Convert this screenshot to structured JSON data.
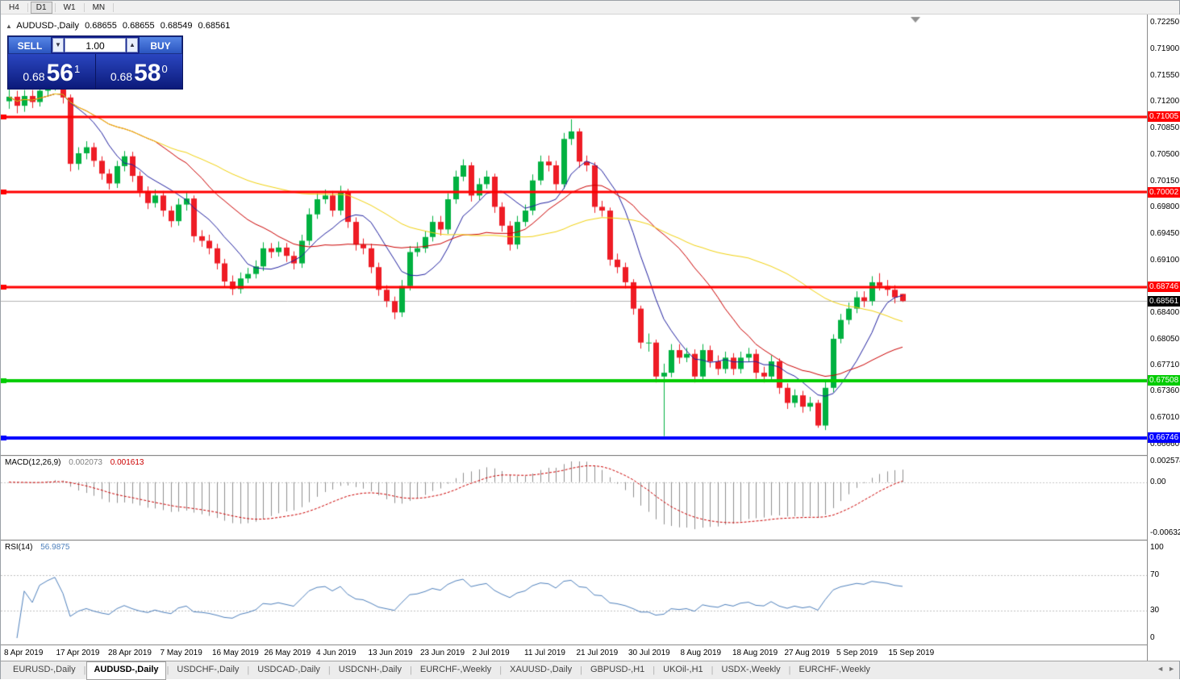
{
  "timeframe_toolbar": {
    "buttons": [
      "H4",
      "D1",
      "W1",
      "MN"
    ],
    "active": "D1"
  },
  "icons": {
    "collapse": "▲",
    "volume_down": "▼",
    "volume_up": "▲",
    "tab_separator": "|",
    "tab_scroll_left": "◄",
    "tab_scroll_right": "►"
  },
  "chart_header": {
    "title": "AUDUSD-,Daily",
    "open": "0.68655",
    "high": "0.68655",
    "low": "0.68549",
    "close": "0.68561"
  },
  "trade_panel": {
    "sell_label": "SELL",
    "buy_label": "BUY",
    "volume": "1.00",
    "bid": {
      "prefix": "0.68",
      "big": "56",
      "sup": "1"
    },
    "ask": {
      "prefix": "0.68",
      "big": "58",
      "sup": "0"
    }
  },
  "price_axis": {
    "labels": [
      "0.72250",
      "0.71900",
      "0.71550",
      "0.71200",
      "0.70850",
      "0.70500",
      "0.70150",
      "0.69800",
      "0.69450",
      "0.69100",
      "0.68400",
      "0.68050",
      "0.67710",
      "0.67360",
      "0.67010",
      "0.66660"
    ]
  },
  "current_price": {
    "label": "0.68561",
    "price": 0.68561,
    "tag_bg": "#000000",
    "line_color": "#b4b4b4"
  },
  "levels": [
    {
      "label": "0.71005",
      "price": 0.71005,
      "color": "#ff0000",
      "width": 3
    },
    {
      "label": "0.70002",
      "price": 0.70002,
      "color": "#ff0000",
      "width": 3
    },
    {
      "label": "0.68746",
      "price": 0.68746,
      "color": "#ff0000",
      "width": 3
    },
    {
      "label": "0.67508",
      "price": 0.67508,
      "color": "#00cc00",
      "width": 4
    },
    {
      "label": "0.66746",
      "price": 0.66746,
      "color": "#0000ff",
      "width": 4
    }
  ],
  "macd_panel": {
    "title": "MACD(12,26,9)",
    "value_main": "0.002073",
    "value_signal": "0.001613",
    "histogram_color": "#909090",
    "signal_color": "#cc0000",
    "axis_labels": [
      {
        "text": "0.0025740",
        "value": 0.002574
      },
      {
        "text": "0.00",
        "value": 0
      },
      {
        "text": "-0.0063260",
        "value": -0.006326
      }
    ]
  },
  "rsi_panel": {
    "title": "RSI(14)",
    "value": "56.9875",
    "period": 14,
    "line_color": "#4f81bd",
    "levels": [
      70,
      30
    ],
    "axis_labels": [
      100,
      70,
      30,
      0
    ]
  },
  "date_axis": {
    "labels": [
      "8 Apr 2019",
      "17 Apr 2019",
      "28 Apr 2019",
      "7 May 2019",
      "16 May 2019",
      "26 May 2019",
      "4 Jun 2019",
      "13 Jun 2019",
      "23 Jun 2019",
      "2 Jul 2019",
      "11 Jul 2019",
      "21 Jul 2019",
      "30 Jul 2019",
      "8 Aug 2019",
      "18 Aug 2019",
      "27 Aug 2019",
      "5 Sep 2019",
      "15 Sep 2019"
    ]
  },
  "tabs": {
    "items": [
      "EURUSD-,Daily",
      "AUDUSD-,Daily",
      "USDCHF-,Daily",
      "USDCAD-,Daily",
      "USDCNH-,Daily",
      "EURCHF-,Weekly",
      "XAUUSD-,Daily",
      "GBPUSD-,H1",
      "UKOil-,H1",
      "USDX-,Weekly",
      "EURCHF-,Weekly"
    ],
    "active_index": 1
  },
  "chart_data": {
    "type": "candlestick",
    "symbol": "AUDUSD",
    "timeframe": "Daily",
    "title": "AUDUSD-,Daily",
    "visible_range": {
      "start": "8 Apr 2019",
      "end": "18 Sep 2019"
    },
    "y_range": [
      0.6652,
      0.7236
    ],
    "up_color": "#00b140",
    "down_color": "#ee1c25",
    "overlays": [
      {
        "name": "ma-fast",
        "type": "sma",
        "period": 8,
        "color": "#2020a0"
      },
      {
        "name": "ma-mid",
        "type": "sma",
        "period": 20,
        "color": "#cc0000"
      },
      {
        "name": "ma-slow",
        "type": "sma",
        "period": 45,
        "color": "#f2d20e"
      }
    ],
    "candles": [
      [
        0.7121,
        0.7137,
        0.7111,
        0.7127
      ],
      [
        0.7127,
        0.7135,
        0.7105,
        0.7115
      ],
      [
        0.7115,
        0.7136,
        0.7107,
        0.7128
      ],
      [
        0.7128,
        0.7136,
        0.7112,
        0.712
      ],
      [
        0.712,
        0.7143,
        0.7114,
        0.7135
      ],
      [
        0.7135,
        0.7149,
        0.7128,
        0.7142
      ],
      [
        0.7142,
        0.7151,
        0.7135,
        0.7148
      ],
      [
        0.7148,
        0.7152,
        0.7118,
        0.7126
      ],
      [
        0.7126,
        0.713,
        0.7028,
        0.7038
      ],
      [
        0.7038,
        0.706,
        0.703,
        0.7052
      ],
      [
        0.7052,
        0.7068,
        0.7044,
        0.706
      ],
      [
        0.706,
        0.7066,
        0.7034,
        0.7042
      ],
      [
        0.7042,
        0.7048,
        0.7017,
        0.7025
      ],
      [
        0.7025,
        0.7031,
        0.7004,
        0.7012
      ],
      [
        0.7012,
        0.7042,
        0.7006,
        0.7035
      ],
      [
        0.7035,
        0.7055,
        0.7028,
        0.7048
      ],
      [
        0.7048,
        0.7054,
        0.7014,
        0.7022
      ],
      [
        0.7022,
        0.7028,
        0.6994,
        0.7002
      ],
      [
        0.7002,
        0.7008,
        0.6978,
        0.6986
      ],
      [
        0.6986,
        0.7004,
        0.698,
        0.6996
      ],
      [
        0.6996,
        0.7002,
        0.6968,
        0.6976
      ],
      [
        0.6976,
        0.6982,
        0.6954,
        0.6962
      ],
      [
        0.6962,
        0.6992,
        0.6956,
        0.6984
      ],
      [
        0.6984,
        0.7,
        0.6976,
        0.6992
      ],
      [
        0.6992,
        0.6996,
        0.6934,
        0.6942
      ],
      [
        0.6942,
        0.695,
        0.6928,
        0.6936
      ],
      [
        0.6936,
        0.6944,
        0.6918,
        0.6926
      ],
      [
        0.6926,
        0.6932,
        0.6898,
        0.6906
      ],
      [
        0.6906,
        0.6912,
        0.6874,
        0.6882
      ],
      [
        0.6882,
        0.689,
        0.6864,
        0.6872
      ],
      [
        0.6872,
        0.6894,
        0.6866,
        0.6886
      ],
      [
        0.6886,
        0.69,
        0.688,
        0.6892
      ],
      [
        0.6892,
        0.691,
        0.6886,
        0.6902
      ],
      [
        0.6902,
        0.6934,
        0.6896,
        0.6926
      ],
      [
        0.6926,
        0.6933,
        0.6913,
        0.6921
      ],
      [
        0.6921,
        0.6935,
        0.6915,
        0.6927
      ],
      [
        0.6927,
        0.6933,
        0.6908,
        0.6916
      ],
      [
        0.6916,
        0.6922,
        0.6898,
        0.6906
      ],
      [
        0.6906,
        0.6944,
        0.69,
        0.6936
      ],
      [
        0.6936,
        0.6979,
        0.693,
        0.6971
      ],
      [
        0.6971,
        0.6999,
        0.6965,
        0.6991
      ],
      [
        0.6991,
        0.7004,
        0.6985,
        0.6996
      ],
      [
        0.6996,
        0.7002,
        0.6968,
        0.6976
      ],
      [
        0.6976,
        0.7009,
        0.697,
        0.7001
      ],
      [
        0.7001,
        0.7005,
        0.6953,
        0.6961
      ],
      [
        0.6961,
        0.6967,
        0.6923,
        0.6931
      ],
      [
        0.6931,
        0.6939,
        0.6918,
        0.6926
      ],
      [
        0.6926,
        0.6932,
        0.6893,
        0.6901
      ],
      [
        0.6901,
        0.6907,
        0.6863,
        0.6871
      ],
      [
        0.6871,
        0.6877,
        0.6848,
        0.6856
      ],
      [
        0.6856,
        0.6862,
        0.6832,
        0.6841
      ],
      [
        0.6841,
        0.6884,
        0.6835,
        0.6876
      ],
      [
        0.6876,
        0.6929,
        0.687,
        0.6921
      ],
      [
        0.6921,
        0.6934,
        0.6915,
        0.6926
      ],
      [
        0.6926,
        0.6949,
        0.692,
        0.6941
      ],
      [
        0.6941,
        0.6969,
        0.6935,
        0.6961
      ],
      [
        0.6961,
        0.6969,
        0.6943,
        0.6951
      ],
      [
        0.6951,
        0.6999,
        0.6945,
        0.6991
      ],
      [
        0.6991,
        0.7029,
        0.6985,
        0.7021
      ],
      [
        0.7021,
        0.7044,
        0.7015,
        0.7036
      ],
      [
        0.7036,
        0.704,
        0.6988,
        0.6996
      ],
      [
        0.6996,
        0.7019,
        0.699,
        0.7011
      ],
      [
        0.7011,
        0.7029,
        0.7005,
        0.7021
      ],
      [
        0.7021,
        0.7025,
        0.6973,
        0.6981
      ],
      [
        0.6981,
        0.6987,
        0.6948,
        0.6956
      ],
      [
        0.6956,
        0.6962,
        0.6923,
        0.6931
      ],
      [
        0.6931,
        0.6969,
        0.6925,
        0.6961
      ],
      [
        0.6961,
        0.6984,
        0.6955,
        0.6976
      ],
      [
        0.6976,
        0.7024,
        0.697,
        0.7016
      ],
      [
        0.7016,
        0.7049,
        0.701,
        0.7041
      ],
      [
        0.7041,
        0.7049,
        0.7028,
        0.7036
      ],
      [
        0.7036,
        0.7042,
        0.7003,
        0.7011
      ],
      [
        0.7011,
        0.7079,
        0.7005,
        0.7071
      ],
      [
        0.7071,
        0.7097,
        0.7063,
        0.7081
      ],
      [
        0.7081,
        0.7085,
        0.7033,
        0.7041
      ],
      [
        0.7041,
        0.7049,
        0.7028,
        0.7036
      ],
      [
        0.7036,
        0.704,
        0.6973,
        0.6981
      ],
      [
        0.6981,
        0.6989,
        0.6968,
        0.6976
      ],
      [
        0.6976,
        0.698,
        0.6903,
        0.6911
      ],
      [
        0.6911,
        0.6919,
        0.6893,
        0.6901
      ],
      [
        0.6901,
        0.6907,
        0.6873,
        0.6881
      ],
      [
        0.6881,
        0.6885,
        0.6838,
        0.6846
      ],
      [
        0.6846,
        0.685,
        0.6793,
        0.6801
      ],
      [
        0.6801,
        0.6813,
        0.6789,
        0.6801
      ],
      [
        0.6801,
        0.6805,
        0.6748,
        0.6756
      ],
      [
        0.6756,
        0.6773,
        0.6677,
        0.6761
      ],
      [
        0.6761,
        0.6799,
        0.6755,
        0.6791
      ],
      [
        0.6791,
        0.6799,
        0.6773,
        0.6781
      ],
      [
        0.6781,
        0.6794,
        0.6775,
        0.6786
      ],
      [
        0.6786,
        0.6792,
        0.6748,
        0.6756
      ],
      [
        0.6756,
        0.6799,
        0.675,
        0.6791
      ],
      [
        0.6791,
        0.6797,
        0.6768,
        0.6776
      ],
      [
        0.6776,
        0.6784,
        0.6758,
        0.6766
      ],
      [
        0.6766,
        0.6789,
        0.676,
        0.6781
      ],
      [
        0.6781,
        0.6787,
        0.6758,
        0.6766
      ],
      [
        0.6766,
        0.6789,
        0.676,
        0.6781
      ],
      [
        0.6781,
        0.6794,
        0.6775,
        0.6786
      ],
      [
        0.6786,
        0.6792,
        0.6753,
        0.6761
      ],
      [
        0.6761,
        0.6769,
        0.6748,
        0.6756
      ],
      [
        0.6756,
        0.6784,
        0.675,
        0.6776
      ],
      [
        0.6776,
        0.678,
        0.6733,
        0.6741
      ],
      [
        0.6741,
        0.6747,
        0.6713,
        0.6721
      ],
      [
        0.6721,
        0.6739,
        0.6715,
        0.6731
      ],
      [
        0.6731,
        0.6737,
        0.6708,
        0.6716
      ],
      [
        0.6716,
        0.6729,
        0.671,
        0.6721
      ],
      [
        0.6721,
        0.6725,
        0.6688,
        0.6691
      ],
      [
        0.6691,
        0.6749,
        0.6685,
        0.6741
      ],
      [
        0.6741,
        0.6812,
        0.6735,
        0.6806
      ],
      [
        0.6806,
        0.6839,
        0.68,
        0.6831
      ],
      [
        0.6831,
        0.6854,
        0.6825,
        0.6846
      ],
      [
        0.6846,
        0.6869,
        0.684,
        0.6861
      ],
      [
        0.6861,
        0.6869,
        0.6848,
        0.6856
      ],
      [
        0.6856,
        0.6889,
        0.685,
        0.6881
      ],
      [
        0.6881,
        0.6893,
        0.687,
        0.6876
      ],
      [
        0.6876,
        0.6884,
        0.6863,
        0.6871
      ],
      [
        0.6871,
        0.6877,
        0.6853,
        0.6861
      ],
      [
        0.68655,
        0.68655,
        0.68549,
        0.68561
      ]
    ]
  }
}
